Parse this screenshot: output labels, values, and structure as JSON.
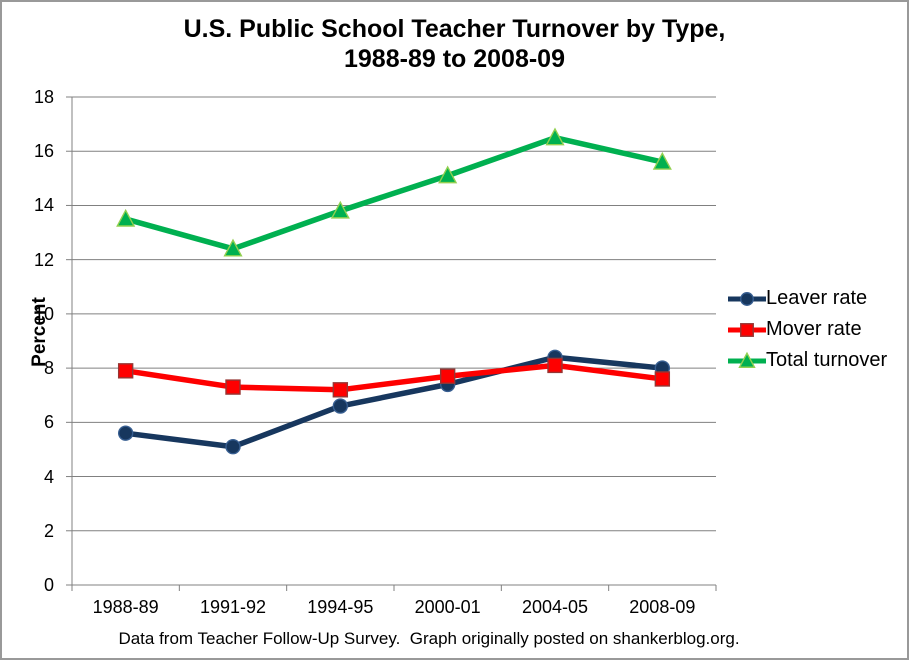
{
  "chart_data": {
    "type": "line",
    "title_lines": [
      "U.S. Public School Teacher Turnover by Type,",
      "1988-89 to 2008-09"
    ],
    "ylabel": "Percent",
    "xlabel": "",
    "categories": [
      "1988-89",
      "1991-92",
      "1994-95",
      "2000-01",
      "2004-05",
      "2008-09"
    ],
    "series": [
      {
        "name": "Leaver rate",
        "marker": "circle",
        "color": "#17375E",
        "marker_fill": "#17375E",
        "marker_stroke": "#375E91",
        "values": [
          5.6,
          5.1,
          6.6,
          7.4,
          8.4,
          8.0
        ]
      },
      {
        "name": "Mover rate",
        "marker": "square",
        "color": "#FE0000",
        "marker_fill": "#FE0000",
        "marker_stroke": "#963634",
        "values": [
          7.9,
          7.3,
          7.2,
          7.7,
          8.1,
          7.6
        ]
      },
      {
        "name": "Total turnover",
        "marker": "triangle",
        "color": "#00B050",
        "marker_fill": "#00B050",
        "marker_stroke": "#92D050",
        "values": [
          13.5,
          12.4,
          13.8,
          15.1,
          16.5,
          15.6
        ]
      }
    ],
    "ylim": [
      0,
      18
    ],
    "ytick_step": 2,
    "ytick_labels": [
      "0",
      "2",
      "4",
      "6",
      "8",
      "10",
      "12",
      "14",
      "16",
      "18"
    ],
    "grid": true,
    "legend_position": "right",
    "colors": {
      "grid": "#808080",
      "axis": "#808080",
      "text": "#000000",
      "background": "#FFFFFF",
      "frame_border": "#999999"
    },
    "footer": "Data from Teacher Follow-Up Survey.  Graph originally posted on shankerblog.org."
  }
}
